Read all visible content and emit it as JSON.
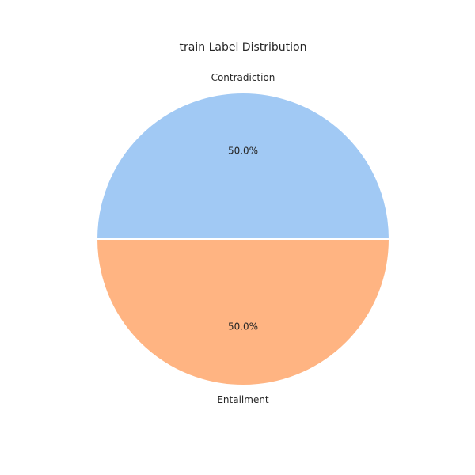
{
  "chart_data": {
    "type": "pie",
    "title": "train Label Distribution",
    "slices": [
      {
        "label": "Contradiction",
        "value": 50.0,
        "pct_label": "50.0%",
        "color": "#a1c9f4"
      },
      {
        "label": "Entailment",
        "value": 50.0,
        "pct_label": "50.0%",
        "color": "#ffb482"
      }
    ],
    "edge_color": "#ffffff",
    "start_angle_deg": 0,
    "direction": "counterclockwise"
  }
}
